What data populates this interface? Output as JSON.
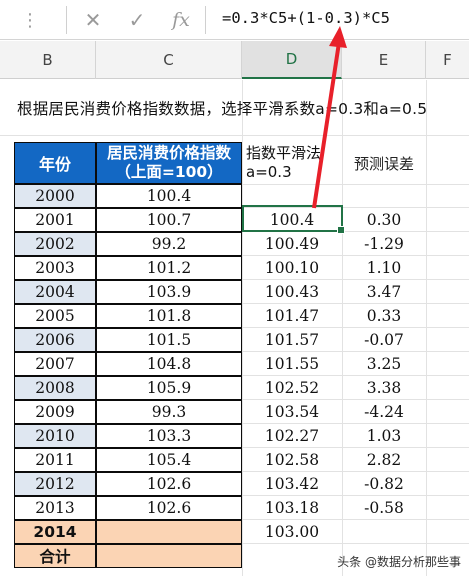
{
  "formula_bar": {
    "more_icon": "⋮",
    "cancel_icon": "✕",
    "enter_icon": "✓",
    "fx_label": "fx",
    "formula": "=0.3*C5+(1-0.3)*C5"
  },
  "columns": [
    "B",
    "C",
    "D",
    "E",
    "F"
  ],
  "title": "根据居民消费价格指数数据，选择平滑系数a=0.3和a=0.5",
  "table": {
    "header_year": "年份",
    "header_cpi": "居民消费价格指数（上面=100）",
    "header_smooth": "指数平滑法a=0.3",
    "header_error": "预测误差",
    "rows": [
      {
        "year": "2000",
        "cpi": "100.4",
        "smooth": "",
        "error": ""
      },
      {
        "year": "2001",
        "cpi": "100.7",
        "smooth": "100.4",
        "error": "0.30"
      },
      {
        "year": "2002",
        "cpi": "99.2",
        "smooth": "100.49",
        "error": "-1.29"
      },
      {
        "year": "2003",
        "cpi": "101.2",
        "smooth": "100.10",
        "error": "1.10"
      },
      {
        "year": "2004",
        "cpi": "103.9",
        "smooth": "100.43",
        "error": "3.47"
      },
      {
        "year": "2005",
        "cpi": "101.8",
        "smooth": "101.47",
        "error": "0.33"
      },
      {
        "year": "2006",
        "cpi": "101.5",
        "smooth": "101.57",
        "error": "-0.07"
      },
      {
        "year": "2007",
        "cpi": "104.8",
        "smooth": "101.55",
        "error": "3.25"
      },
      {
        "year": "2008",
        "cpi": "105.9",
        "smooth": "102.52",
        "error": "3.38"
      },
      {
        "year": "2009",
        "cpi": "99.3",
        "smooth": "103.54",
        "error": "-4.24"
      },
      {
        "year": "2010",
        "cpi": "103.3",
        "smooth": "102.27",
        "error": "1.03"
      },
      {
        "year": "2011",
        "cpi": "105.4",
        "smooth": "102.58",
        "error": "2.82"
      },
      {
        "year": "2012",
        "cpi": "102.6",
        "smooth": "103.42",
        "error": "-0.82"
      },
      {
        "year": "2013",
        "cpi": "102.6",
        "smooth": "103.18",
        "error": "-0.58"
      }
    ],
    "forecast_year": "2014",
    "forecast_value": "103.00",
    "total_label": "合计"
  },
  "watermark": "头条 @数据分析那些事",
  "colors": {
    "header_blue": "#1368c4",
    "alt_row": "#dfe7f1",
    "orange": "#fbd4b4",
    "selection_green": "#217346",
    "arrow_red": "#e8202a"
  }
}
